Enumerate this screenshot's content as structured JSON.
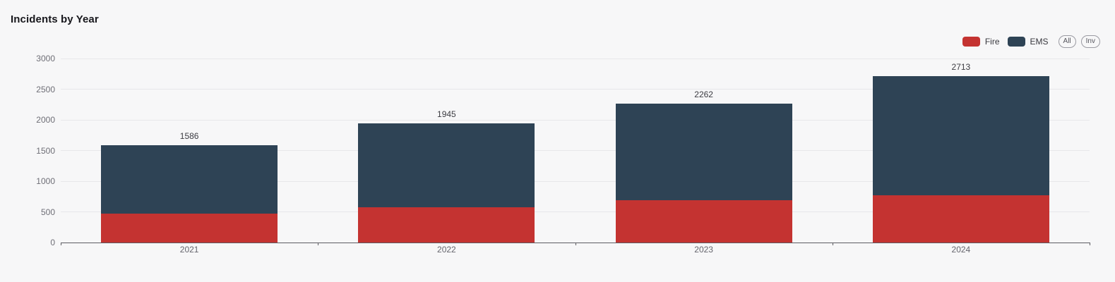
{
  "title": "Incidents by Year",
  "legend": {
    "items": [
      {
        "label": "Fire",
        "color": "#c43331"
      },
      {
        "label": "EMS",
        "color": "#2e4355"
      }
    ],
    "buttons": [
      {
        "label": "All"
      },
      {
        "label": "Inv"
      }
    ]
  },
  "chart_data": {
    "type": "bar",
    "stacked": true,
    "title": "Incidents by Year",
    "categories": [
      "2021",
      "2022",
      "2023",
      "2024"
    ],
    "series": [
      {
        "name": "Fire",
        "color": "#c43331",
        "values": [
          475,
          575,
          690,
          770
        ]
      },
      {
        "name": "EMS",
        "color": "#2e4355",
        "values": [
          1111,
          1370,
          1572,
          1943
        ]
      }
    ],
    "totals": [
      1586,
      1945,
      2262,
      2713
    ],
    "xlabel": "",
    "ylabel": "",
    "ylim": [
      0,
      3000
    ],
    "yticks": [
      0,
      500,
      1000,
      1500,
      2000,
      2500,
      3000
    ],
    "grid": true,
    "legend_position": "top-right"
  },
  "colors": {
    "background": "#f7f7f8",
    "gridline": "#e7e7ea",
    "axis": "#5c5c62",
    "tick_text": "#6e6e76",
    "label_text": "#3c3c42",
    "title_text": "#18181d"
  }
}
